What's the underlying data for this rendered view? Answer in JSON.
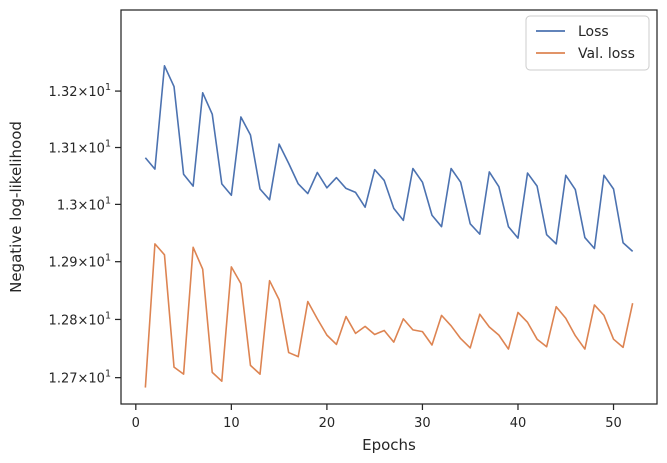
{
  "chart_data": {
    "type": "line",
    "xlabel": "Epochs",
    "ylabel": "Negative log-likelihood",
    "xlim": [
      -1.55,
      54.55
    ],
    "ylim": [
      12.655,
      13.345
    ],
    "yscale": "log",
    "grid": false,
    "legend_position": "top-right",
    "x_ticks": [
      {
        "value": 0,
        "label": "0"
      },
      {
        "value": 10,
        "label": "10"
      },
      {
        "value": 20,
        "label": "20"
      },
      {
        "value": 30,
        "label": "30"
      },
      {
        "value": 40,
        "label": "40"
      },
      {
        "value": 50,
        "label": "50"
      }
    ],
    "y_ticks": [
      {
        "value": 12.7,
        "mantissa": "1.27",
        "base": "10",
        "exp": "1"
      },
      {
        "value": 12.8,
        "mantissa": "1.28",
        "base": "10",
        "exp": "1"
      },
      {
        "value": 12.9,
        "mantissa": "1.29",
        "base": "10",
        "exp": "1"
      },
      {
        "value": 13.0,
        "mantissa": "1.3",
        "base": "10",
        "exp": "1"
      },
      {
        "value": 13.1,
        "mantissa": "1.31",
        "base": "10",
        "exp": "1"
      },
      {
        "value": 13.2,
        "mantissa": "1.32",
        "base": "10",
        "exp": "1"
      }
    ],
    "x": [
      1,
      2,
      3,
      4,
      5,
      6,
      7,
      8,
      9,
      10,
      11,
      12,
      13,
      14,
      15,
      16,
      17,
      18,
      19,
      20,
      21,
      22,
      23,
      24,
      25,
      26,
      27,
      28,
      29,
      30,
      31,
      32,
      33,
      34,
      35,
      36,
      37,
      38,
      39,
      40,
      41,
      42,
      43,
      44,
      45,
      46,
      47,
      48,
      49,
      50,
      51,
      52
    ],
    "series": [
      {
        "name": "Loss",
        "color": "#4c72b0",
        "values": [
          13.082,
          13.062,
          13.245,
          13.208,
          13.053,
          13.032,
          13.197,
          13.159,
          13.036,
          13.016,
          13.154,
          13.122,
          13.027,
          13.008,
          13.106,
          13.072,
          13.036,
          13.019,
          13.056,
          13.029,
          13.047,
          13.028,
          13.021,
          12.995,
          13.061,
          13.042,
          12.993,
          12.972,
          13.063,
          13.039,
          12.981,
          12.961,
          13.063,
          13.039,
          12.966,
          12.948,
          13.057,
          13.031,
          12.961,
          12.941,
          13.055,
          13.032,
          12.947,
          12.931,
          13.051,
          13.026,
          12.942,
          12.923,
          13.051,
          13.027,
          12.933,
          12.918
        ]
      },
      {
        "name": "Val. loss",
        "color": "#dd8452",
        "values": [
          12.683,
          12.931,
          12.912,
          12.718,
          12.706,
          12.925,
          12.887,
          12.709,
          12.694,
          12.891,
          12.862,
          12.721,
          12.706,
          12.867,
          12.834,
          12.743,
          12.736,
          12.831,
          12.801,
          12.773,
          12.757,
          12.805,
          12.776,
          12.788,
          12.774,
          12.781,
          12.761,
          12.801,
          12.782,
          12.779,
          12.756,
          12.807,
          12.789,
          12.767,
          12.751,
          12.809,
          12.787,
          12.773,
          12.749,
          12.812,
          12.795,
          12.766,
          12.753,
          12.822,
          12.802,
          12.772,
          12.749,
          12.825,
          12.807,
          12.766,
          12.752,
          12.828
        ]
      }
    ]
  }
}
